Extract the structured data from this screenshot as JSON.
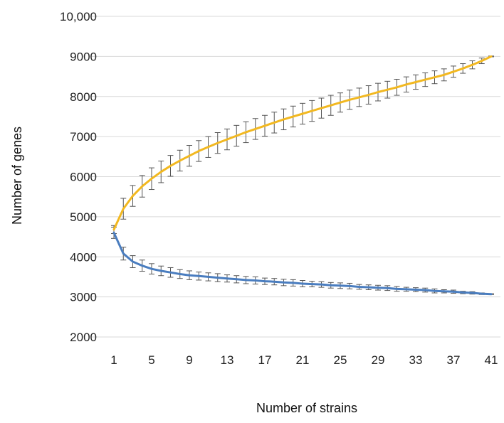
{
  "chart_data": {
    "type": "line",
    "title": "",
    "xlabel": "Number of strains",
    "ylabel": "Number of genes",
    "xlim": [
      1,
      41
    ],
    "ylim": [
      2000,
      10000
    ],
    "x_ticks": [
      "1",
      "5",
      "9",
      "13",
      "17",
      "21",
      "25",
      "29",
      "33",
      "37",
      "41"
    ],
    "y_ticks": [
      "2000",
      "3000",
      "4000",
      "5000",
      "6000",
      "7000",
      "8000",
      "9000",
      "10,000"
    ],
    "y_tick_values": [
      2000,
      3000,
      4000,
      5000,
      6000,
      7000,
      8000,
      9000,
      10000
    ],
    "grid": "horizontal",
    "legend": "none",
    "x": [
      1,
      2,
      3,
      4,
      5,
      6,
      7,
      8,
      9,
      10,
      11,
      12,
      13,
      14,
      15,
      16,
      17,
      18,
      19,
      20,
      21,
      22,
      23,
      24,
      25,
      26,
      27,
      28,
      29,
      30,
      31,
      32,
      33,
      34,
      35,
      36,
      37,
      38,
      39,
      40,
      41
    ],
    "series": [
      {
        "color": "#f2b820",
        "values": [
          4680,
          5200,
          5520,
          5760,
          5950,
          6120,
          6270,
          6400,
          6520,
          6640,
          6740,
          6840,
          6930,
          7020,
          7110,
          7190,
          7270,
          7350,
          7430,
          7500,
          7570,
          7640,
          7710,
          7780,
          7850,
          7920,
          7980,
          8040,
          8110,
          8170,
          8230,
          8300,
          8360,
          8420,
          8480,
          8540,
          8620,
          8700,
          8790,
          8890,
          9000
        ],
        "errors": [
          100,
          260,
          260,
          270,
          270,
          270,
          260,
          260,
          260,
          260,
          260,
          260,
          260,
          260,
          260,
          260,
          260,
          260,
          260,
          260,
          260,
          260,
          250,
          250,
          240,
          240,
          230,
          230,
          220,
          210,
          200,
          190,
          180,
          170,
          160,
          150,
          140,
          120,
          100,
          70,
          10
        ]
      },
      {
        "color": "#4a7dbf",
        "values": [
          4600,
          4080,
          3880,
          3780,
          3700,
          3650,
          3610,
          3570,
          3540,
          3520,
          3500,
          3480,
          3460,
          3440,
          3420,
          3410,
          3390,
          3380,
          3360,
          3350,
          3330,
          3320,
          3310,
          3290,
          3280,
          3270,
          3250,
          3240,
          3230,
          3220,
          3200,
          3190,
          3180,
          3170,
          3150,
          3140,
          3130,
          3110,
          3100,
          3080,
          3070
        ],
        "errors": [
          140,
          160,
          150,
          140,
          130,
          120,
          120,
          110,
          110,
          100,
          100,
          100,
          90,
          90,
          90,
          90,
          80,
          80,
          80,
          80,
          80,
          70,
          70,
          70,
          70,
          70,
          60,
          60,
          60,
          60,
          60,
          50,
          50,
          50,
          50,
          40,
          40,
          30,
          30,
          20,
          10
        ]
      }
    ]
  }
}
